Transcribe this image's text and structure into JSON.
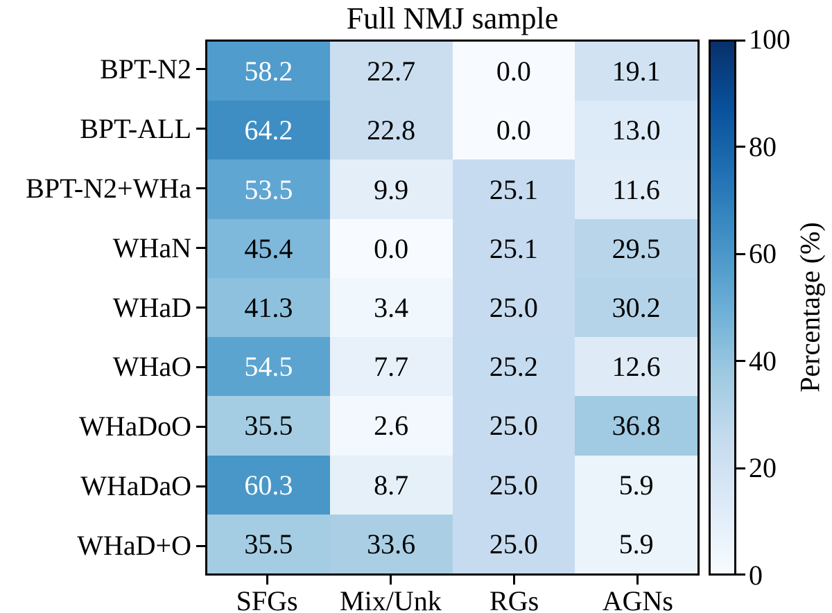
{
  "title": "Full NMJ sample",
  "colors": {
    "background": "#ffffff",
    "border": "#000000",
    "cell_text_dark": "#000000",
    "cell_text_light": "#ffffff"
  },
  "chart_data": {
    "type": "heatmap",
    "title": "Full NMJ sample",
    "rows": [
      "BPT-N2",
      "BPT-ALL",
      "BPT-N2+WHa",
      "WHaN",
      "WHaD",
      "WHaO",
      "WHaDoO",
      "WHaDaO",
      "WHaD+O"
    ],
    "columns": [
      "SFGs",
      "Mix/Unk",
      "RGs",
      "AGNs"
    ],
    "values": [
      [
        58.2,
        22.7,
        0.0,
        19.1
      ],
      [
        64.2,
        22.8,
        0.0,
        13.0
      ],
      [
        53.5,
        9.9,
        25.1,
        11.6
      ],
      [
        45.4,
        0.0,
        25.1,
        29.5
      ],
      [
        41.3,
        3.4,
        25.0,
        30.2
      ],
      [
        54.5,
        7.7,
        25.2,
        12.6
      ],
      [
        35.5,
        2.6,
        25.0,
        36.8
      ],
      [
        60.3,
        8.7,
        25.0,
        5.9
      ],
      [
        35.5,
        33.6,
        25.0,
        5.9
      ]
    ],
    "value_decimals": 1,
    "text_color_threshold": 50,
    "colorbar": {
      "label": "Percentage (%)",
      "min": 0,
      "max": 100,
      "ticks": [
        0,
        20,
        40,
        60,
        80,
        100
      ]
    },
    "colormap": {
      "name": "Blues",
      "stops": [
        {
          "pos": 0.0,
          "rgb": [
            247,
            251,
            255
          ]
        },
        {
          "pos": 0.125,
          "rgb": [
            222,
            235,
            247
          ]
        },
        {
          "pos": 0.25,
          "rgb": [
            198,
            219,
            239
          ]
        },
        {
          "pos": 0.375,
          "rgb": [
            158,
            202,
            225
          ]
        },
        {
          "pos": 0.5,
          "rgb": [
            107,
            174,
            214
          ]
        },
        {
          "pos": 0.625,
          "rgb": [
            66,
            146,
            198
          ]
        },
        {
          "pos": 0.75,
          "rgb": [
            33,
            113,
            181
          ]
        },
        {
          "pos": 0.875,
          "rgb": [
            8,
            81,
            156
          ]
        },
        {
          "pos": 1.0,
          "rgb": [
            8,
            48,
            107
          ]
        }
      ]
    },
    "legend_position": "right",
    "grid": false
  }
}
